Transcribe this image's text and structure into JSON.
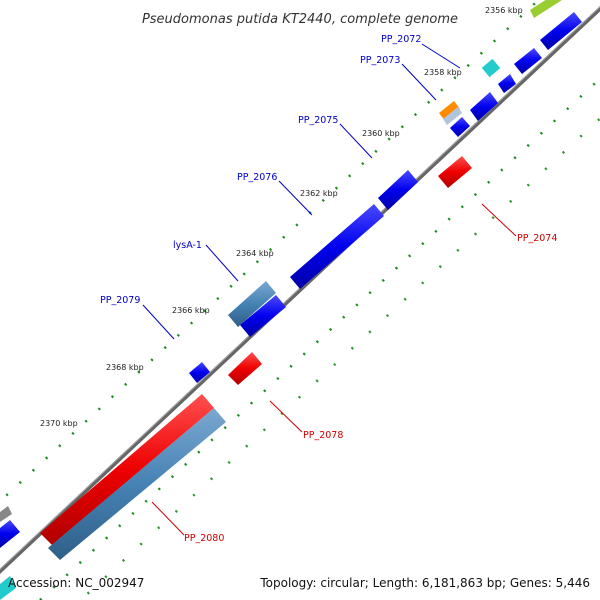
{
  "title": "Pseudomonas putida KT2440, complete genome",
  "accession": "Accession: NC_002947",
  "summary": "Topology: circular; Length: 6,181,863 bp; Genes: 5,446",
  "kbp_ticks": [
    "2356 kbp",
    "2358 kbp",
    "2360 kbp",
    "2362 kbp",
    "2364 kbp",
    "2366 kbp",
    "2368 kbp",
    "2370 kbp"
  ],
  "genes_upper": [
    "PP_2072",
    "PP_2073",
    "PP_2075",
    "PP_2076",
    "lysA-1",
    "PP_2079"
  ],
  "genes_lower": [
    "PP_2074",
    "PP_2078",
    "PP_2080"
  ],
  "colors": {
    "forward_cds": "#0000ee",
    "reverse_cds": "#ee0000",
    "steelblue_feature": "#4682b4",
    "cyan_feature": "#22cccc",
    "orange_feature": "#ff8c00",
    "green_feature": "#9acd32",
    "backbone": "#777777",
    "tick_dots": "#1a8a1a"
  }
}
